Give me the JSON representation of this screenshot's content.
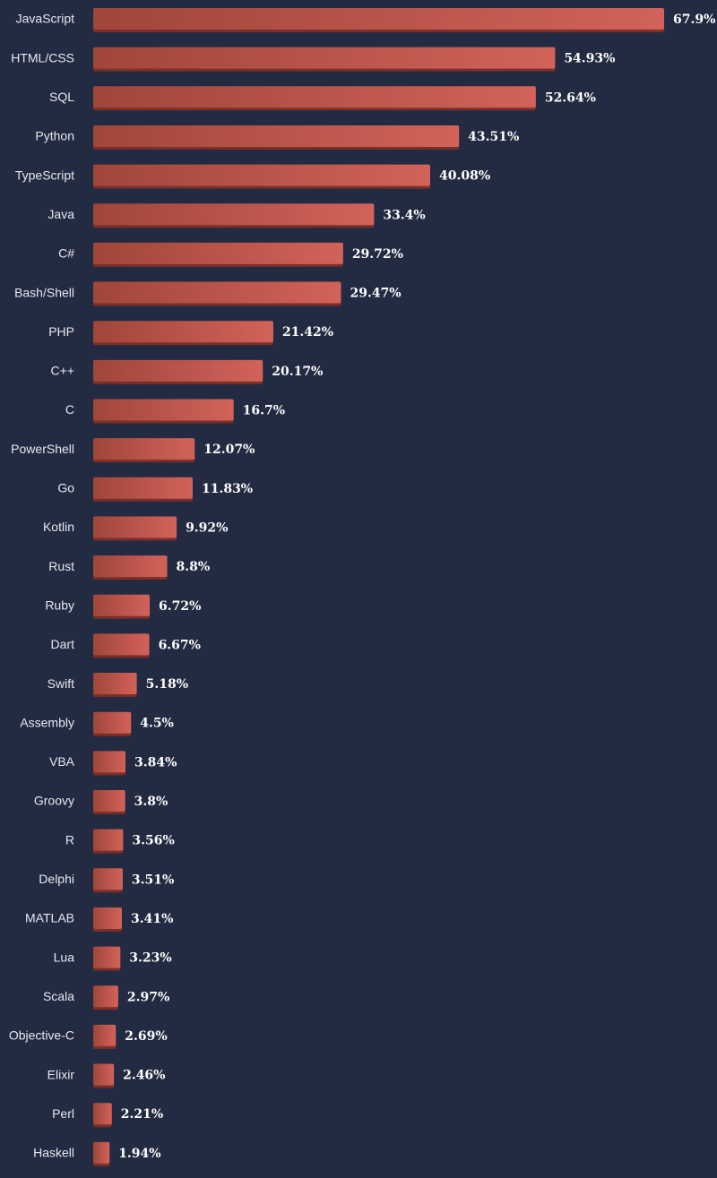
{
  "chart_data": {
    "type": "bar",
    "orientation": "horizontal",
    "title": "",
    "xlabel": "",
    "ylabel": "",
    "xlim": [
      0,
      67.9
    ],
    "grid": false,
    "legend": "none",
    "colors": {
      "background": "#232b42",
      "bar_dark": "#a0463a",
      "bar_light": "#d2625a",
      "bar_shadow": "#7a2f28",
      "category_text": "#e6e8ee",
      "value_text": "#ffffff"
    },
    "categories": [
      "JavaScript",
      "HTML/CSS",
      "SQL",
      "Python",
      "TypeScript",
      "Java",
      "C#",
      "Bash/Shell",
      "PHP",
      "C++",
      "C",
      "PowerShell",
      "Go",
      "Kotlin",
      "Rust",
      "Ruby",
      "Dart",
      "Swift",
      "Assembly",
      "VBA",
      "Groovy",
      "R",
      "Delphi",
      "MATLAB",
      "Lua",
      "Scala",
      "Objective-C",
      "Elixir",
      "Perl",
      "Haskell"
    ],
    "values": [
      67.9,
      54.93,
      52.64,
      43.51,
      40.08,
      33.4,
      29.72,
      29.47,
      21.42,
      20.17,
      16.7,
      12.07,
      11.83,
      9.92,
      8.8,
      6.72,
      6.67,
      5.18,
      4.5,
      3.84,
      3.8,
      3.56,
      3.51,
      3.41,
      3.23,
      2.97,
      2.69,
      2.46,
      2.21,
      1.94
    ],
    "value_labels": [
      "67.9%",
      "54.93%",
      "52.64%",
      "43.51%",
      "40.08%",
      "33.4%",
      "29.72%",
      "29.47%",
      "21.42%",
      "20.17%",
      "16.7%",
      "12.07%",
      "11.83%",
      "9.92%",
      "8.8%",
      "6.72%",
      "6.67%",
      "5.18%",
      "4.5%",
      "3.84%",
      "3.8%",
      "3.56%",
      "3.51%",
      "3.41%",
      "3.23%",
      "2.97%",
      "2.69%",
      "2.46%",
      "2.21%",
      "1.94%"
    ]
  }
}
